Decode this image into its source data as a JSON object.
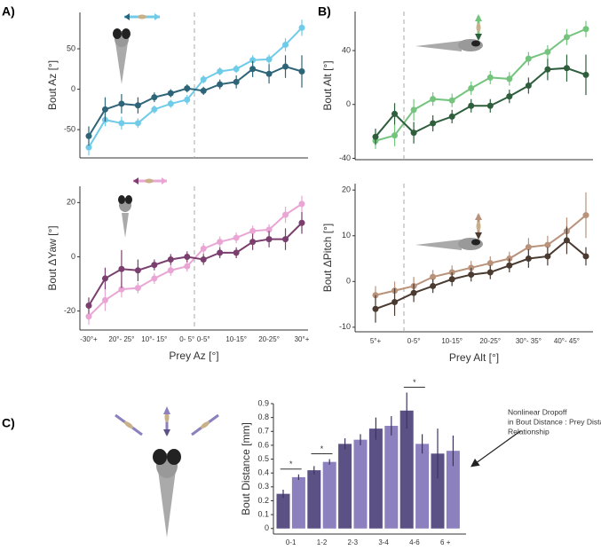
{
  "panel_labels": [
    "A)",
    "B)",
    "C)"
  ],
  "chart_data": [
    {
      "type": "line",
      "ylabel": "Bout Az [°]",
      "ylim": [
        -85,
        95
      ],
      "yticks": [
        -50,
        0,
        50
      ],
      "series": [
        {
          "color": "#6fcbe8",
          "values": [
            -72,
            -38,
            -42,
            -42,
            -25,
            -18,
            -13,
            12,
            22,
            25,
            36,
            37,
            55,
            76
          ],
          "errors": [
            10,
            8,
            8,
            6,
            5,
            5,
            6,
            5,
            5,
            5,
            6,
            6,
            8,
            10
          ]
        },
        {
          "color": "#2e6478",
          "values": [
            -58,
            -25,
            -18,
            -20,
            -10,
            -5,
            1,
            -2,
            6,
            9,
            25,
            19,
            28,
            22
          ],
          "errors": [
            12,
            15,
            12,
            10,
            6,
            5,
            5,
            5,
            6,
            8,
            10,
            12,
            14,
            20
          ]
        }
      ]
    },
    {
      "type": "line",
      "ylabel": "Bout ΔYaw [°]",
      "xlabel": "Prey Az [°]",
      "ylim": [
        -27,
        26
      ],
      "yticks": [
        -20,
        0,
        20
      ],
      "categories": [
        "-30°+",
        null,
        "20°- 25°",
        null,
        "10°- 15°",
        null,
        "0- 5°",
        "0-5°",
        null,
        "10-15°",
        null,
        "20-25°",
        null,
        "30°+"
      ],
      "series": [
        {
          "color": "#e9a6d4",
          "values": [
            -22,
            -16,
            -12,
            -11.5,
            -8,
            -5,
            -3.5,
            3,
            5.5,
            7,
            9.5,
            10,
            15.5,
            19.5
          ],
          "errors": [
            3,
            4,
            3,
            2,
            2,
            2,
            2,
            2,
            2,
            2,
            2,
            2,
            3,
            3
          ]
        },
        {
          "color": "#7a3f6e",
          "values": [
            -18,
            -8,
            -4.5,
            -5,
            -3,
            -1,
            0,
            -1,
            1.5,
            1.5,
            5.5,
            6.5,
            6.5,
            12.5
          ],
          "errors": [
            3,
            4,
            7,
            4,
            2,
            2,
            2,
            2,
            2,
            2,
            3,
            3,
            4,
            4
          ]
        }
      ]
    },
    {
      "type": "line",
      "ylabel": "Bout  Alt [°]",
      "ylim": [
        -41,
        69
      ],
      "yticks": [
        -40,
        0,
        40
      ],
      "series": [
        {
          "color": "#74c47e",
          "values": [
            -27,
            -23,
            -4,
            4,
            3,
            12,
            20,
            19,
            34,
            39,
            50,
            56
          ],
          "errors": [
            6,
            8,
            8,
            5,
            5,
            5,
            5,
            5,
            5,
            5,
            6,
            6
          ]
        },
        {
          "color": "#2e5e3c",
          "values": [
            -24,
            -7,
            -21,
            -14,
            -9,
            -1,
            -1,
            6,
            14,
            26,
            27,
            22
          ],
          "errors": [
            6,
            8,
            8,
            6,
            5,
            5,
            5,
            5,
            6,
            8,
            10,
            15
          ]
        }
      ]
    },
    {
      "type": "line",
      "ylabel": "Bout ΔPitch [°]",
      "xlabel": "Prey Alt [°]",
      "ylim": [
        -11,
        21.4
      ],
      "yticks": [
        -10,
        0,
        10,
        20
      ],
      "categories": [
        "5°+",
        null,
        "0-5°",
        null,
        "10-15°",
        null,
        "20-25°",
        null,
        "30°- 35°",
        null,
        "40°- 45°",
        null
      ],
      "series": [
        {
          "color": "#b8927a",
          "values": [
            -3,
            -2,
            -1,
            1,
            2,
            3,
            4,
            5,
            7.5,
            8,
            11,
            14.5
          ],
          "errors": [
            2,
            2,
            2,
            1.5,
            1.5,
            1.5,
            1.5,
            1.5,
            2,
            2,
            3,
            5
          ]
        },
        {
          "color": "#4a3a30",
          "values": [
            -6,
            -4.5,
            -2.5,
            -1,
            0.5,
            1.5,
            2,
            3.5,
            5,
            5.5,
            9,
            5.5
          ],
          "errors": [
            3,
            3,
            2,
            1.5,
            1.5,
            1.5,
            1.5,
            1.5,
            2,
            2,
            3,
            2
          ]
        }
      ]
    },
    {
      "type": "bar",
      "ylabel": "Bout Distance [mm]",
      "xlabel": "Prey Distance [mm]",
      "ylim": [
        -0.04,
        0.9
      ],
      "yticks": [
        0,
        0.1,
        0.2,
        0.3,
        0.4,
        0.5,
        0.6,
        0.7,
        0.8,
        0.9
      ],
      "categories": [
        "0-1",
        "1-2",
        "2-3",
        "3-4",
        "4-6",
        "6 +"
      ],
      "significance": [
        "*",
        "*",
        null,
        null,
        "*",
        null
      ],
      "annotation": [
        "Nonlinear Dropoff",
        "in Bout Distance : Prey Distance",
        "Relationship"
      ],
      "series": [
        {
          "color": "#5b5184",
          "values": [
            0.25,
            0.42,
            0.61,
            0.72,
            0.85,
            0.54
          ],
          "errors": [
            0.03,
            0.03,
            0.04,
            0.08,
            0.13,
            0.18
          ]
        },
        {
          "color": "#8c80be",
          "values": [
            0.37,
            0.48,
            0.64,
            0.74,
            0.61,
            0.56
          ],
          "errors": [
            0.02,
            0.02,
            0.04,
            0.07,
            0.07,
            0.11
          ]
        }
      ]
    }
  ]
}
